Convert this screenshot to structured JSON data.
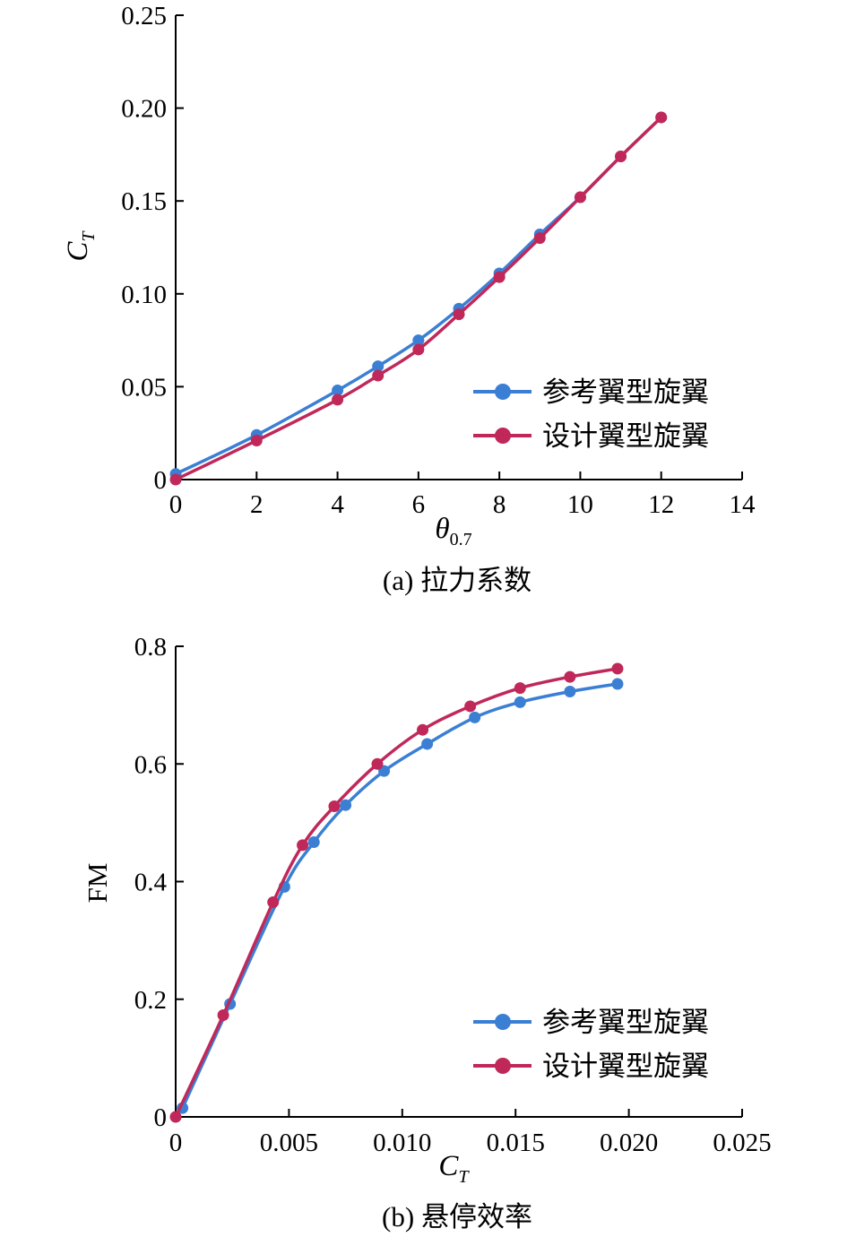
{
  "chart_data": [
    {
      "type": "line",
      "caption": "(a) 拉力系数",
      "xlabel": "θ0.7",
      "ylabel": "CT",
      "xlim": [
        0,
        14
      ],
      "ylim": [
        0,
        0.25
      ],
      "xticks": [
        0,
        2,
        4,
        6,
        8,
        10,
        12,
        14
      ],
      "xtick_labels": [
        "0",
        "2",
        "4",
        "6",
        "8",
        "10",
        "12",
        "14"
      ],
      "yticks": [
        0,
        0.05,
        0.1,
        0.15,
        0.2,
        0.25
      ],
      "ytick_labels": [
        "0",
        "0.05",
        "0.10",
        "0.15",
        "0.20",
        "0.25"
      ],
      "legend_position": "bottom-right",
      "series": [
        {
          "name": "参考翼型旋翼",
          "color": "#3b7fd4",
          "x": [
            0,
            2,
            4,
            5,
            6,
            7,
            8,
            9,
            10,
            11,
            12
          ],
          "y": [
            0.003,
            0.024,
            0.048,
            0.061,
            0.075,
            0.092,
            0.111,
            0.132,
            0.152,
            0.174,
            0.195
          ]
        },
        {
          "name": "设计翼型旋翼",
          "color": "#c0285a",
          "x": [
            0,
            2,
            4,
            5,
            6,
            7,
            8,
            9,
            10,
            11,
            12
          ],
          "y": [
            0.0,
            0.021,
            0.043,
            0.056,
            0.07,
            0.089,
            0.109,
            0.13,
            0.152,
            0.174,
            0.195
          ]
        }
      ]
    },
    {
      "type": "line",
      "caption": "(b) 悬停效率",
      "xlabel": "CT",
      "ylabel": "FM",
      "xlim": [
        0,
        0.025
      ],
      "ylim": [
        0,
        0.8
      ],
      "xticks": [
        0,
        0.005,
        0.01,
        0.015,
        0.02,
        0.025
      ],
      "xtick_labels": [
        "0",
        "0.005",
        "0.010",
        "0.015",
        "0.020",
        "0.025"
      ],
      "yticks": [
        0,
        0.2,
        0.4,
        0.6,
        0.8
      ],
      "ytick_labels": [
        "0",
        "0.2",
        "0.4",
        "0.6",
        "0.8"
      ],
      "legend_position": "bottom-right",
      "series": [
        {
          "name": "参考翼型旋翼",
          "color": "#3b7fd4",
          "x": [
            0.0003,
            0.0024,
            0.0048,
            0.0061,
            0.0075,
            0.0092,
            0.0111,
            0.0132,
            0.0152,
            0.0174,
            0.0195
          ],
          "y": [
            0.015,
            0.192,
            0.391,
            0.467,
            0.53,
            0.588,
            0.634,
            0.679,
            0.705,
            0.723,
            0.736
          ]
        },
        {
          "name": "设计翼型旋翼",
          "color": "#c0285a",
          "x": [
            0.0,
            0.0021,
            0.0043,
            0.0056,
            0.007,
            0.0089,
            0.0109,
            0.013,
            0.0152,
            0.0174,
            0.0195
          ],
          "y": [
            0.0,
            0.173,
            0.365,
            0.462,
            0.528,
            0.6,
            0.658,
            0.698,
            0.729,
            0.748,
            0.762
          ]
        }
      ]
    }
  ]
}
